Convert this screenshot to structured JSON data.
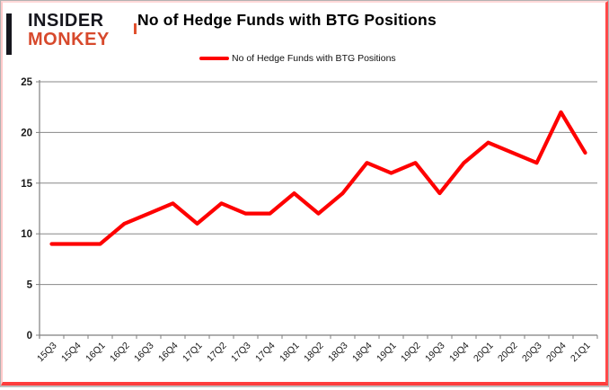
{
  "logo": {
    "line1": "INSIDER",
    "line2": "MONKEY",
    "primary_color": "#16161d",
    "accent_color": "#d7492c"
  },
  "header": {
    "title": "No of Hedge Funds with BTG Positions"
  },
  "legend": {
    "label": "No of Hedge Funds with BTG Positions",
    "line_color": "#fe0000"
  },
  "chart_data": {
    "type": "line",
    "title": "No of Hedge Funds with BTG Positions",
    "categories": [
      "15Q3",
      "15Q4",
      "16Q1",
      "16Q2",
      "16Q3",
      "16Q4",
      "17Q1",
      "17Q2",
      "17Q3",
      "17Q4",
      "18Q1",
      "18Q2",
      "18Q3",
      "18Q4",
      "19Q1",
      "19Q2",
      "19Q3",
      "19Q4",
      "20Q1",
      "20Q2",
      "20Q3",
      "20Q4",
      "21Q1"
    ],
    "series": [
      {
        "name": "No of Hedge Funds with BTG Positions",
        "color": "#fe0000",
        "values": [
          9,
          9,
          9,
          11,
          12,
          13,
          11,
          13,
          12,
          12,
          14,
          12,
          14,
          17,
          16,
          17,
          14,
          17,
          19,
          18,
          17,
          22,
          18
        ]
      }
    ],
    "xlabel": "",
    "ylabel": "",
    "ylim": [
      0,
      25
    ],
    "yticks": [
      0,
      5,
      10,
      15,
      20,
      25
    ],
    "grid": "horizontal",
    "grid_color": "#878787",
    "axis_color": "#7f7f7f",
    "tick_label_color": "#1a1a1a",
    "legend_position": "top-center"
  }
}
